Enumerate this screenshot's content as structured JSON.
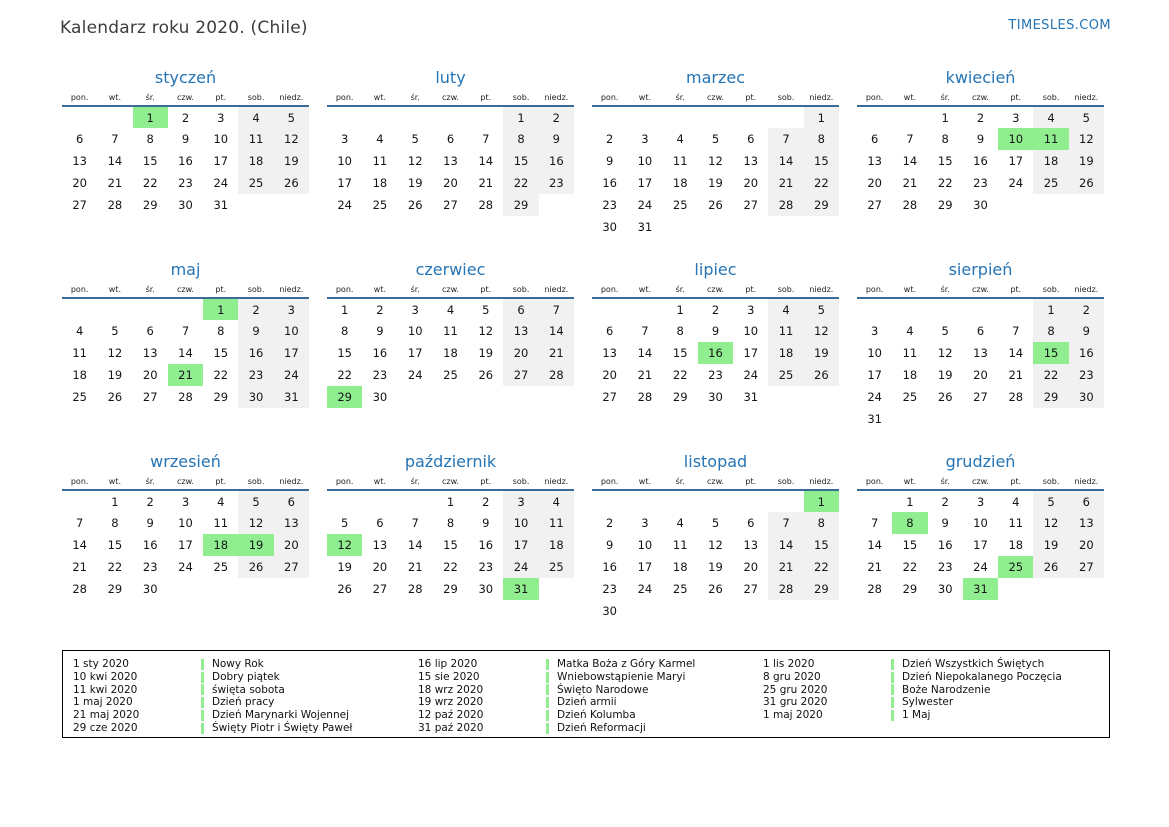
{
  "header": {
    "title": "Kalendarz roku 2020. (Chile)",
    "brand": "TIMESLES.COM"
  },
  "colors": {
    "accent_blue": "#2574b5",
    "header_line": "#3a6b99",
    "holiday_green": "#90ee90",
    "weekend_gray": "#f1f1f1"
  },
  "day_headers": [
    "pon.",
    "wt.",
    "śr.",
    "czw.",
    "pt.",
    "sob.",
    "niedz."
  ],
  "months": [
    {
      "name": "styczeń",
      "weeks": [
        [
          0,
          0,
          1,
          2,
          3,
          4,
          5
        ],
        [
          6,
          7,
          8,
          9,
          10,
          11,
          12
        ],
        [
          13,
          14,
          15,
          16,
          17,
          18,
          19
        ],
        [
          20,
          21,
          22,
          23,
          24,
          25,
          26
        ],
        [
          27,
          28,
          29,
          30,
          31,
          0,
          0
        ]
      ],
      "holidays": [
        1
      ]
    },
    {
      "name": "luty",
      "weeks": [
        [
          0,
          0,
          0,
          0,
          0,
          1,
          2
        ],
        [
          3,
          4,
          5,
          6,
          7,
          8,
          9
        ],
        [
          10,
          11,
          12,
          13,
          14,
          15,
          16
        ],
        [
          17,
          18,
          19,
          20,
          21,
          22,
          23
        ],
        [
          24,
          25,
          26,
          27,
          28,
          29,
          0
        ]
      ],
      "holidays": []
    },
    {
      "name": "marzec",
      "weeks": [
        [
          0,
          0,
          0,
          0,
          0,
          0,
          1
        ],
        [
          2,
          3,
          4,
          5,
          6,
          7,
          8
        ],
        [
          9,
          10,
          11,
          12,
          13,
          14,
          15
        ],
        [
          16,
          17,
          18,
          19,
          20,
          21,
          22
        ],
        [
          23,
          24,
          25,
          26,
          27,
          28,
          29
        ],
        [
          30,
          31,
          0,
          0,
          0,
          0,
          0
        ]
      ],
      "holidays": []
    },
    {
      "name": "kwiecień",
      "weeks": [
        [
          0,
          0,
          1,
          2,
          3,
          4,
          5
        ],
        [
          6,
          7,
          8,
          9,
          10,
          11,
          12
        ],
        [
          13,
          14,
          15,
          16,
          17,
          18,
          19
        ],
        [
          20,
          21,
          22,
          23,
          24,
          25,
          26
        ],
        [
          27,
          28,
          29,
          30,
          0,
          0,
          0
        ]
      ],
      "holidays": [
        10,
        11
      ]
    },
    {
      "name": "maj",
      "weeks": [
        [
          0,
          0,
          0,
          0,
          1,
          2,
          3
        ],
        [
          4,
          5,
          6,
          7,
          8,
          9,
          10
        ],
        [
          11,
          12,
          13,
          14,
          15,
          16,
          17
        ],
        [
          18,
          19,
          20,
          21,
          22,
          23,
          24
        ],
        [
          25,
          26,
          27,
          28,
          29,
          30,
          31
        ]
      ],
      "holidays": [
        1,
        21
      ]
    },
    {
      "name": "czerwiec",
      "weeks": [
        [
          1,
          2,
          3,
          4,
          5,
          6,
          7
        ],
        [
          8,
          9,
          10,
          11,
          12,
          13,
          14
        ],
        [
          15,
          16,
          17,
          18,
          19,
          20,
          21
        ],
        [
          22,
          23,
          24,
          25,
          26,
          27,
          28
        ],
        [
          29,
          30,
          0,
          0,
          0,
          0,
          0
        ]
      ],
      "holidays": [
        29
      ]
    },
    {
      "name": "lipiec",
      "weeks": [
        [
          0,
          0,
          1,
          2,
          3,
          4,
          5
        ],
        [
          6,
          7,
          8,
          9,
          10,
          11,
          12
        ],
        [
          13,
          14,
          15,
          16,
          17,
          18,
          19
        ],
        [
          20,
          21,
          22,
          23,
          24,
          25,
          26
        ],
        [
          27,
          28,
          29,
          30,
          31,
          0,
          0
        ]
      ],
      "holidays": [
        16
      ]
    },
    {
      "name": "sierpień",
      "weeks": [
        [
          0,
          0,
          0,
          0,
          0,
          1,
          2
        ],
        [
          3,
          4,
          5,
          6,
          7,
          8,
          9
        ],
        [
          10,
          11,
          12,
          13,
          14,
          15,
          16
        ],
        [
          17,
          18,
          19,
          20,
          21,
          22,
          23
        ],
        [
          24,
          25,
          26,
          27,
          28,
          29,
          30
        ],
        [
          31,
          0,
          0,
          0,
          0,
          0,
          0
        ]
      ],
      "holidays": [
        15
      ]
    },
    {
      "name": "wrzesień",
      "weeks": [
        [
          0,
          1,
          2,
          3,
          4,
          5,
          6
        ],
        [
          7,
          8,
          9,
          10,
          11,
          12,
          13
        ],
        [
          14,
          15,
          16,
          17,
          18,
          19,
          20
        ],
        [
          21,
          22,
          23,
          24,
          25,
          26,
          27
        ],
        [
          28,
          29,
          30,
          0,
          0,
          0,
          0
        ]
      ],
      "holidays": [
        18,
        19
      ]
    },
    {
      "name": "październik",
      "weeks": [
        [
          0,
          0,
          0,
          1,
          2,
          3,
          4
        ],
        [
          5,
          6,
          7,
          8,
          9,
          10,
          11
        ],
        [
          12,
          13,
          14,
          15,
          16,
          17,
          18
        ],
        [
          19,
          20,
          21,
          22,
          23,
          24,
          25
        ],
        [
          26,
          27,
          28,
          29,
          30,
          31,
          0
        ]
      ],
      "holidays": [
        12,
        31
      ]
    },
    {
      "name": "listopad",
      "weeks": [
        [
          0,
          0,
          0,
          0,
          0,
          0,
          1
        ],
        [
          2,
          3,
          4,
          5,
          6,
          7,
          8
        ],
        [
          9,
          10,
          11,
          12,
          13,
          14,
          15
        ],
        [
          16,
          17,
          18,
          19,
          20,
          21,
          22
        ],
        [
          23,
          24,
          25,
          26,
          27,
          28,
          29
        ],
        [
          30,
          0,
          0,
          0,
          0,
          0,
          0
        ]
      ],
      "holidays": [
        1
      ]
    },
    {
      "name": "grudzień",
      "weeks": [
        [
          0,
          1,
          2,
          3,
          4,
          5,
          6
        ],
        [
          7,
          8,
          9,
          10,
          11,
          12,
          13
        ],
        [
          14,
          15,
          16,
          17,
          18,
          19,
          20
        ],
        [
          21,
          22,
          23,
          24,
          25,
          26,
          27
        ],
        [
          28,
          29,
          30,
          31,
          0,
          0,
          0
        ]
      ],
      "holidays": [
        8,
        25,
        31
      ]
    }
  ],
  "legend": {
    "columns": [
      [
        {
          "date": "1 sty 2020",
          "name": "Nowy Rok"
        },
        {
          "date": "10 kwi 2020",
          "name": "Dobry piątek"
        },
        {
          "date": "11 kwi 2020",
          "name": "święta sobota"
        },
        {
          "date": "1 maj 2020",
          "name": "Dzień pracy"
        },
        {
          "date": "21 maj 2020",
          "name": "Dzień Marynarki Wojennej"
        },
        {
          "date": "29 cze 2020",
          "name": "Święty Piotr i Święty Paweł"
        }
      ],
      [
        {
          "date": "16 lip 2020",
          "name": "Matka Boża z Góry Karmel"
        },
        {
          "date": "15 sie 2020",
          "name": "Wniebowstąpienie Maryi"
        },
        {
          "date": "18 wrz 2020",
          "name": "Święto Narodowe"
        },
        {
          "date": "19 wrz 2020",
          "name": "Dzień armii"
        },
        {
          "date": "12 paź 2020",
          "name": "Dzień Kolumba"
        },
        {
          "date": "31 paź 2020",
          "name": "Dzień Reformacji"
        }
      ],
      [
        {
          "date": "1 lis 2020",
          "name": "Dzień Wszystkich Świętych"
        },
        {
          "date": "8 gru 2020",
          "name": "Dzień Niepokalanego Poczęcia"
        },
        {
          "date": "25 gru 2020",
          "name": "Boże Narodzenie"
        },
        {
          "date": "31 gru 2020",
          "name": "Sylwester"
        },
        {
          "date": "1 maj 2020",
          "name": "1 Maj"
        }
      ]
    ]
  }
}
